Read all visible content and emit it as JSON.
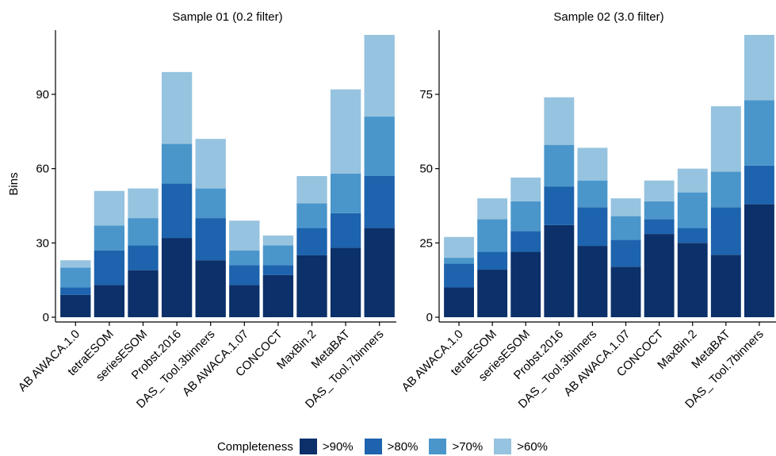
{
  "ylabel": "Bins",
  "legend": {
    "title": "Completeness",
    "entries": [
      {
        "label": ">90%",
        "color": "#0c3069"
      },
      {
        "label": ">80%",
        "color": "#1d63ad"
      },
      {
        "label": ">70%",
        "color": "#4a96cb"
      },
      {
        "label": ">60%",
        "color": "#96c3df"
      }
    ]
  },
  "chart_data": [
    {
      "type": "bar",
      "stacked": true,
      "title": "Sample 01 (0.2 filter)",
      "ylabel": "Bins",
      "ylim": [
        0,
        114
      ],
      "yticks": [
        0,
        30,
        60,
        90
      ],
      "grid": false,
      "categories": [
        "AB AWACA.1.0",
        "tetraESOM",
        "seriesESOM",
        "Probst.2016",
        "DAS_ Tool.3binners",
        "AB AWACA.1.07",
        "CONCOCT",
        "MaxBin.2",
        "MetaBAT",
        "DAS_ Tool.7binners"
      ],
      "series": [
        {
          "name": ">90%",
          "values": [
            9,
            13,
            19,
            32,
            23,
            13,
            17,
            25,
            28,
            36
          ]
        },
        {
          "name": ">80%",
          "values": [
            3,
            14,
            10,
            22,
            17,
            8,
            4,
            11,
            14,
            21
          ]
        },
        {
          "name": ">70%",
          "values": [
            8,
            10,
            11,
            16,
            12,
            6,
            8,
            10,
            16,
            24
          ]
        },
        {
          "name": ">60%",
          "values": [
            3,
            14,
            12,
            29,
            20,
            12,
            4,
            11,
            34,
            33
          ]
        }
      ]
    },
    {
      "type": "bar",
      "stacked": true,
      "title": "Sample 02 (3.0 filter)",
      "ylabel": "",
      "ylim": [
        0,
        95
      ],
      "yticks": [
        0,
        25,
        50,
        75
      ],
      "grid": false,
      "categories": [
        "AB AWACA.1.0",
        "tetraESOM",
        "seriesESOM",
        "Probst.2016",
        "DAS_ Tool.3binners",
        "AB AWACA.1.07",
        "CONCOCT",
        "MaxBin.2",
        "MetaBAT",
        "DAS_ Tool.7binners"
      ],
      "series": [
        {
          "name": ">90%",
          "values": [
            10,
            16,
            22,
            31,
            24,
            17,
            28,
            25,
            21,
            38
          ]
        },
        {
          "name": ">80%",
          "values": [
            8,
            6,
            7,
            13,
            13,
            9,
            5,
            5,
            16,
            13
          ]
        },
        {
          "name": ">70%",
          "values": [
            2,
            11,
            10,
            14,
            9,
            8,
            6,
            12,
            12,
            22
          ]
        },
        {
          "name": ">60%",
          "values": [
            7,
            7,
            8,
            16,
            11,
            6,
            7,
            8,
            22,
            22
          ]
        }
      ]
    }
  ]
}
